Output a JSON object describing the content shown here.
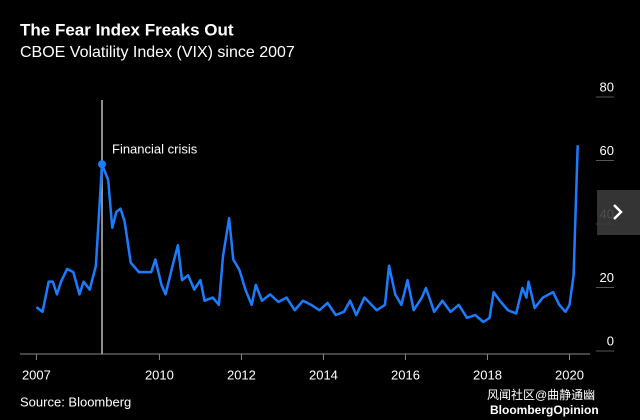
{
  "chart_data": {
    "type": "line",
    "title": "The Fear Index Freaks Out",
    "subtitle": "CBOE Volatility Index (VIX) since 2007",
    "source": "Source: Bloomberg",
    "watermark": "风闻社区@曲静通幽",
    "logo": "BloombergOpinion",
    "annotation": {
      "text": "Financial crisis",
      "x": 2008.6,
      "y": 56
    },
    "x": [
      2007.0,
      2007.15,
      2007.3,
      2007.4,
      2007.5,
      2007.6,
      2007.75,
      2007.9,
      2008.05,
      2008.15,
      2008.3,
      2008.45,
      2008.6,
      2008.75,
      2008.85,
      2008.95,
      2009.05,
      2009.15,
      2009.3,
      2009.5,
      2009.8,
      2009.9,
      2010.05,
      2010.15,
      2010.3,
      2010.45,
      2010.55,
      2010.7,
      2010.85,
      2011.0,
      2011.1,
      2011.3,
      2011.45,
      2011.55,
      2011.7,
      2011.8,
      2011.95,
      2012.1,
      2012.25,
      2012.35,
      2012.5,
      2012.7,
      2012.9,
      2013.1,
      2013.3,
      2013.5,
      2013.7,
      2013.9,
      2014.1,
      2014.3,
      2014.5,
      2014.65,
      2014.8,
      2015.0,
      2015.3,
      2015.5,
      2015.6,
      2015.75,
      2015.9,
      2016.05,
      2016.2,
      2016.4,
      2016.5,
      2016.7,
      2016.9,
      2017.1,
      2017.3,
      2017.5,
      2017.7,
      2017.9,
      2018.05,
      2018.15,
      2018.3,
      2018.5,
      2018.7,
      2018.85,
      2018.95,
      2019.0,
      2019.15,
      2019.35,
      2019.6,
      2019.75,
      2019.9,
      2020.0,
      2020.1,
      2020.2
    ],
    "series": [
      {
        "name": "VIX",
        "color": "#1a7cff",
        "values": [
          11,
          9.5,
          19,
          19,
          15,
          19,
          23,
          22,
          15,
          19,
          16.5,
          24,
          56,
          51,
          36,
          41,
          42,
          38,
          25,
          22,
          22,
          26,
          18,
          15,
          23,
          30.5,
          19.5,
          21,
          16.5,
          19.5,
          13,
          14,
          11.7,
          27,
          39,
          26,
          22.7,
          16.4,
          11.7,
          18,
          13,
          15,
          12.6,
          14,
          10,
          13,
          11.7,
          10,
          12.3,
          8.5,
          9.5,
          13,
          8.5,
          14,
          10,
          11.7,
          24,
          15,
          11.7,
          19.5,
          10,
          14,
          17,
          9.5,
          13,
          9.5,
          11.7,
          7.6,
          8.5,
          6.3,
          7.6,
          15.7,
          13,
          10,
          9,
          17,
          14,
          19,
          10.7,
          14,
          15.7,
          11.7,
          9.5,
          11.7,
          21,
          62
        ]
      }
    ],
    "xlim": [
      2006.6,
      2020.5
    ],
    "xticks": [
      2007,
      2010,
      2012,
      2014,
      2016,
      2018,
      2020
    ],
    "ylim": [
      0,
      80
    ],
    "yticks": [
      0,
      20,
      40,
      60,
      80
    ]
  }
}
